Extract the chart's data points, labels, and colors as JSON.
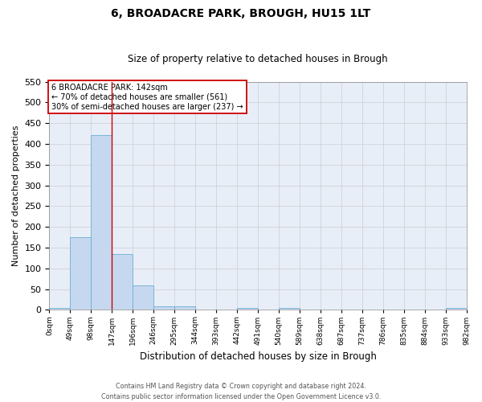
{
  "title": "6, BROADACRE PARK, BROUGH, HU15 1LT",
  "subtitle": "Size of property relative to detached houses in Brough",
  "xlabel": "Distribution of detached houses by size in Brough",
  "ylabel": "Number of detached properties",
  "bar_values": [
    5,
    175,
    422,
    134,
    58,
    9,
    8,
    1,
    0,
    4,
    0,
    5,
    0,
    0,
    0,
    0,
    0,
    0,
    0,
    4
  ],
  "tick_labels": [
    "0sqm",
    "49sqm",
    "98sqm",
    "147sqm",
    "196sqm",
    "246sqm",
    "295sqm",
    "344sqm",
    "393sqm",
    "442sqm",
    "491sqm",
    "540sqm",
    "589sqm",
    "638sqm",
    "687sqm",
    "737sqm",
    "786sqm",
    "835sqm",
    "884sqm",
    "933sqm",
    "982sqm"
  ],
  "bar_color": "#c6d8ef",
  "bar_edge_color": "#6aaed6",
  "vline_index": 3,
  "vline_color": "#cc0000",
  "ylim": [
    0,
    550
  ],
  "yticks": [
    0,
    50,
    100,
    150,
    200,
    250,
    300,
    350,
    400,
    450,
    500,
    550
  ],
  "annotation_box_text": "6 BROADACRE PARK: 142sqm\n← 70% of detached houses are smaller (561)\n30% of semi-detached houses are larger (237) →",
  "annotation_box_color": "#cc0000",
  "footnote": "Contains HM Land Registry data © Crown copyright and database right 2024.\nContains public sector information licensed under the Open Government Licence v3.0.",
  "grid_color": "#cccccc",
  "background_color": "#e8eef8",
  "title_fontsize": 10,
  "subtitle_fontsize": 8.5,
  "xlabel_fontsize": 8.5,
  "ylabel_fontsize": 8,
  "ytick_fontsize": 8,
  "xtick_fontsize": 6.5
}
